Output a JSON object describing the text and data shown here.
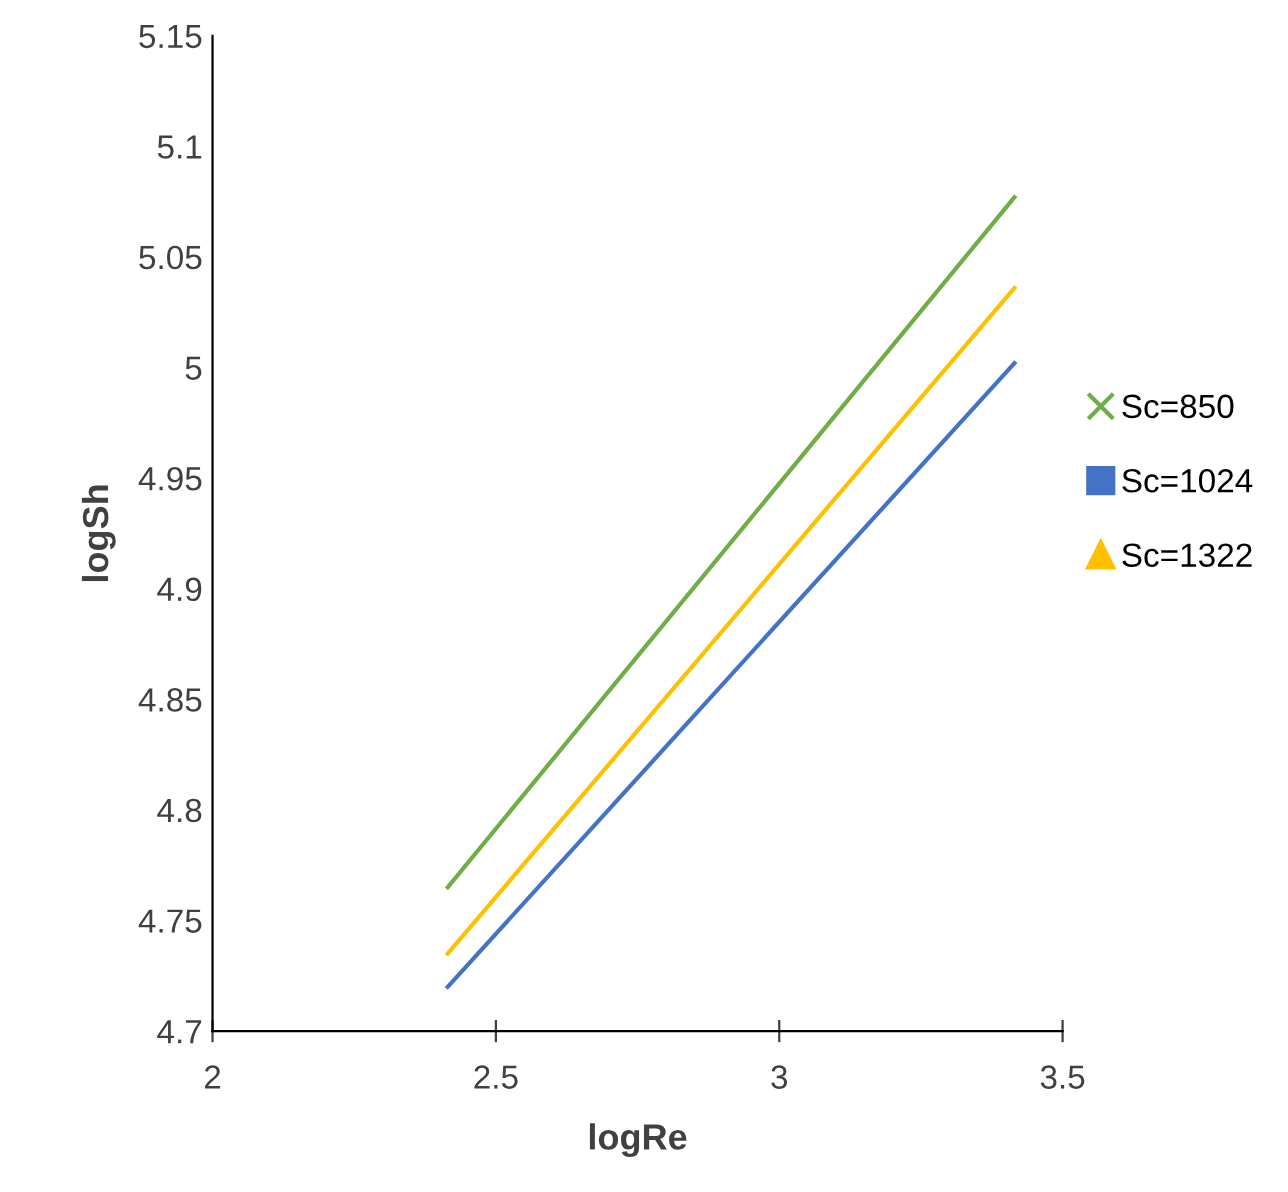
{
  "chart_data": {
    "type": "line",
    "xlabel": "logRe",
    "ylabel": "logSh",
    "xlim": [
      2,
      3.5
    ],
    "xticks": [
      2,
      2.5,
      3,
      3.5
    ],
    "ylim": [
      4.7,
      5.15
    ],
    "yticks": [
      4.7,
      4.75,
      4.8,
      4.85,
      4.9,
      4.95,
      5,
      5.05,
      5.1,
      5.15
    ],
    "x": [
      2.415,
      3.415
    ],
    "grid": false,
    "legend": "right",
    "marker": "none",
    "series": [
      {
        "name": "Sc=850",
        "color": "#70ad47",
        "values": [
          4.765,
          5.077
        ]
      },
      {
        "name": "Sc=1024",
        "color": "#4472c4",
        "values": [
          4.72,
          5.002
        ]
      },
      {
        "name": "Sc=1322",
        "color": "#ffc000",
        "values": [
          4.735,
          5.036
        ]
      }
    ]
  }
}
